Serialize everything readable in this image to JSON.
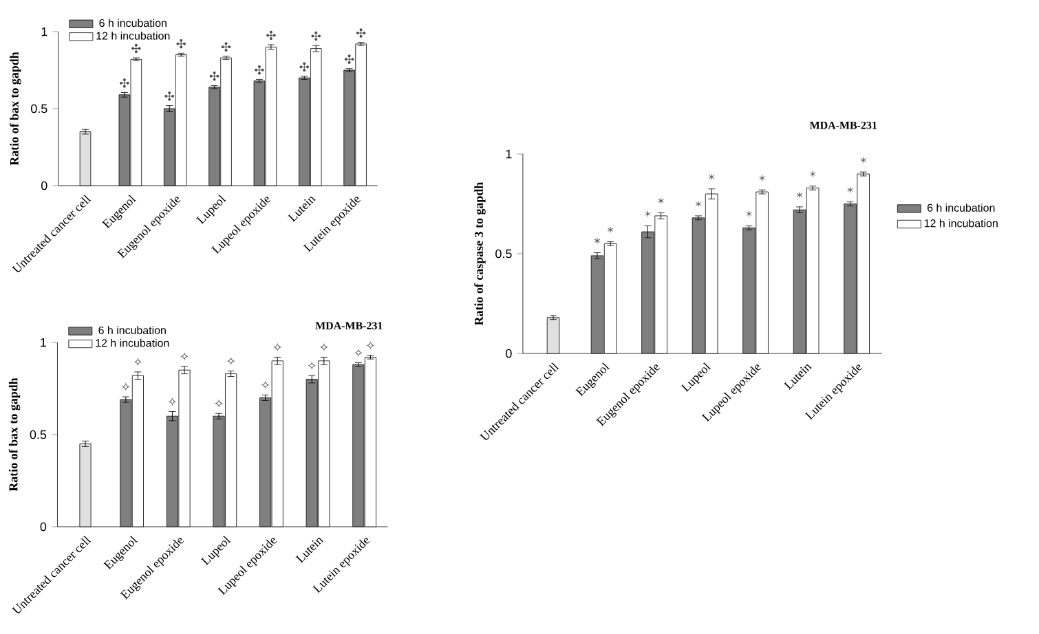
{
  "chart_data": [
    {
      "type": "bar",
      "ylabel": "Ratio of bax to gapdh",
      "categories": [
        "Untreated cancer cell",
        "Eugenol",
        "Eugenol epoxide",
        "Lupeol",
        "Lupeol epoxide",
        "Lutein",
        "Lutein epoxide"
      ],
      "ylim": [
        0,
        1
      ],
      "yticks": [
        0,
        0.5,
        1
      ],
      "legend": "top left",
      "series": [
        {
          "color": "#e0e0e0",
          "values": [
            0.35,
            null,
            null,
            null,
            null,
            null,
            null
          ],
          "errors": [
            0.015,
            null,
            null,
            null,
            null,
            null,
            null
          ]
        },
        {
          "name": "6 h incubation",
          "color": "#7f7f7f",
          "values": [
            null,
            0.59,
            0.5,
            0.64,
            0.68,
            0.7,
            0.75
          ],
          "errors": [
            null,
            0.015,
            0.02,
            0.01,
            0.01,
            0.01,
            0.01
          ],
          "value_labels": [
            null,
            "✣",
            "✣",
            "✣",
            "✣",
            "✣",
            "✣"
          ]
        },
        {
          "name": "12 h incubation",
          "color": "#ffffff",
          "values": [
            null,
            0.82,
            0.85,
            0.83,
            0.9,
            0.89,
            0.92
          ],
          "errors": [
            null,
            0.01,
            0.01,
            0.01,
            0.015,
            0.02,
            0.01
          ],
          "value_labels": [
            null,
            "✣",
            "✣",
            "✣",
            "✣",
            "✣",
            "✣"
          ]
        }
      ]
    },
    {
      "type": "bar",
      "title": "MDA-MB-231",
      "ylabel": "Ratio of bax to gapdh",
      "categories": [
        "Untreated cancer cell",
        "Eugenol",
        "Eugenol epoxide",
        "Lupeol",
        "Lupeol epoxide",
        "Lutein",
        "Lutein epoxide"
      ],
      "ylim": [
        0,
        1
      ],
      "yticks": [
        0,
        0.5,
        1
      ],
      "legend": "top left",
      "series": [
        {
          "color": "#e0e0e0",
          "values": [
            0.45,
            null,
            null,
            null,
            null,
            null,
            null
          ],
          "errors": [
            0.015,
            null,
            null,
            null,
            null,
            null,
            null
          ]
        },
        {
          "name": "6 h incubation",
          "color": "#7f7f7f",
          "values": [
            null,
            0.69,
            0.6,
            0.6,
            0.7,
            0.8,
            0.88
          ],
          "errors": [
            null,
            0.015,
            0.025,
            0.015,
            0.015,
            0.02,
            0.01
          ],
          "value_labels": [
            null,
            "✧",
            "✧",
            "✧",
            "✧",
            "✧",
            "✧"
          ]
        },
        {
          "name": "12 h incubation",
          "color": "#ffffff",
          "values": [
            null,
            0.82,
            0.85,
            0.83,
            0.9,
            0.9,
            0.92
          ],
          "errors": [
            null,
            0.02,
            0.02,
            0.015,
            0.02,
            0.02,
            0.01
          ],
          "value_labels": [
            null,
            "✧",
            "✧",
            "✧",
            "✧",
            "✧",
            "✧"
          ]
        }
      ]
    },
    {
      "type": "bar",
      "title": "MDA-MB-231",
      "ylabel": "Ratio of caspase 3 to gapdh",
      "categories": [
        "Untreated cancer cell",
        "Eugenol",
        "Eugenol epoxide",
        "Lupeol",
        "Lupeol epoxide",
        "Lutein",
        "Lutein epoxide"
      ],
      "ylim": [
        0,
        1
      ],
      "yticks": [
        0,
        0.5,
        1
      ],
      "legend": "right",
      "series": [
        {
          "color": "#e0e0e0",
          "values": [
            0.18,
            null,
            null,
            null,
            null,
            null,
            null
          ],
          "errors": [
            0.01,
            null,
            null,
            null,
            null,
            null,
            null
          ]
        },
        {
          "name": "6 h incubation",
          "color": "#7f7f7f",
          "values": [
            null,
            0.49,
            0.61,
            0.68,
            0.63,
            0.72,
            0.75
          ],
          "errors": [
            null,
            0.015,
            0.03,
            0.01,
            0.01,
            0.015,
            0.01
          ],
          "value_labels": [
            null,
            "*",
            "*",
            "*",
            "*",
            "*",
            "*"
          ]
        },
        {
          "name": "12 h incubation",
          "color": "#ffffff",
          "values": [
            null,
            0.55,
            0.69,
            0.8,
            0.81,
            0.83,
            0.9
          ],
          "errors": [
            null,
            0.01,
            0.015,
            0.025,
            0.01,
            0.01,
            0.01
          ],
          "value_labels": [
            null,
            "*",
            "*",
            "*",
            "*",
            "*",
            "*"
          ]
        }
      ]
    }
  ]
}
